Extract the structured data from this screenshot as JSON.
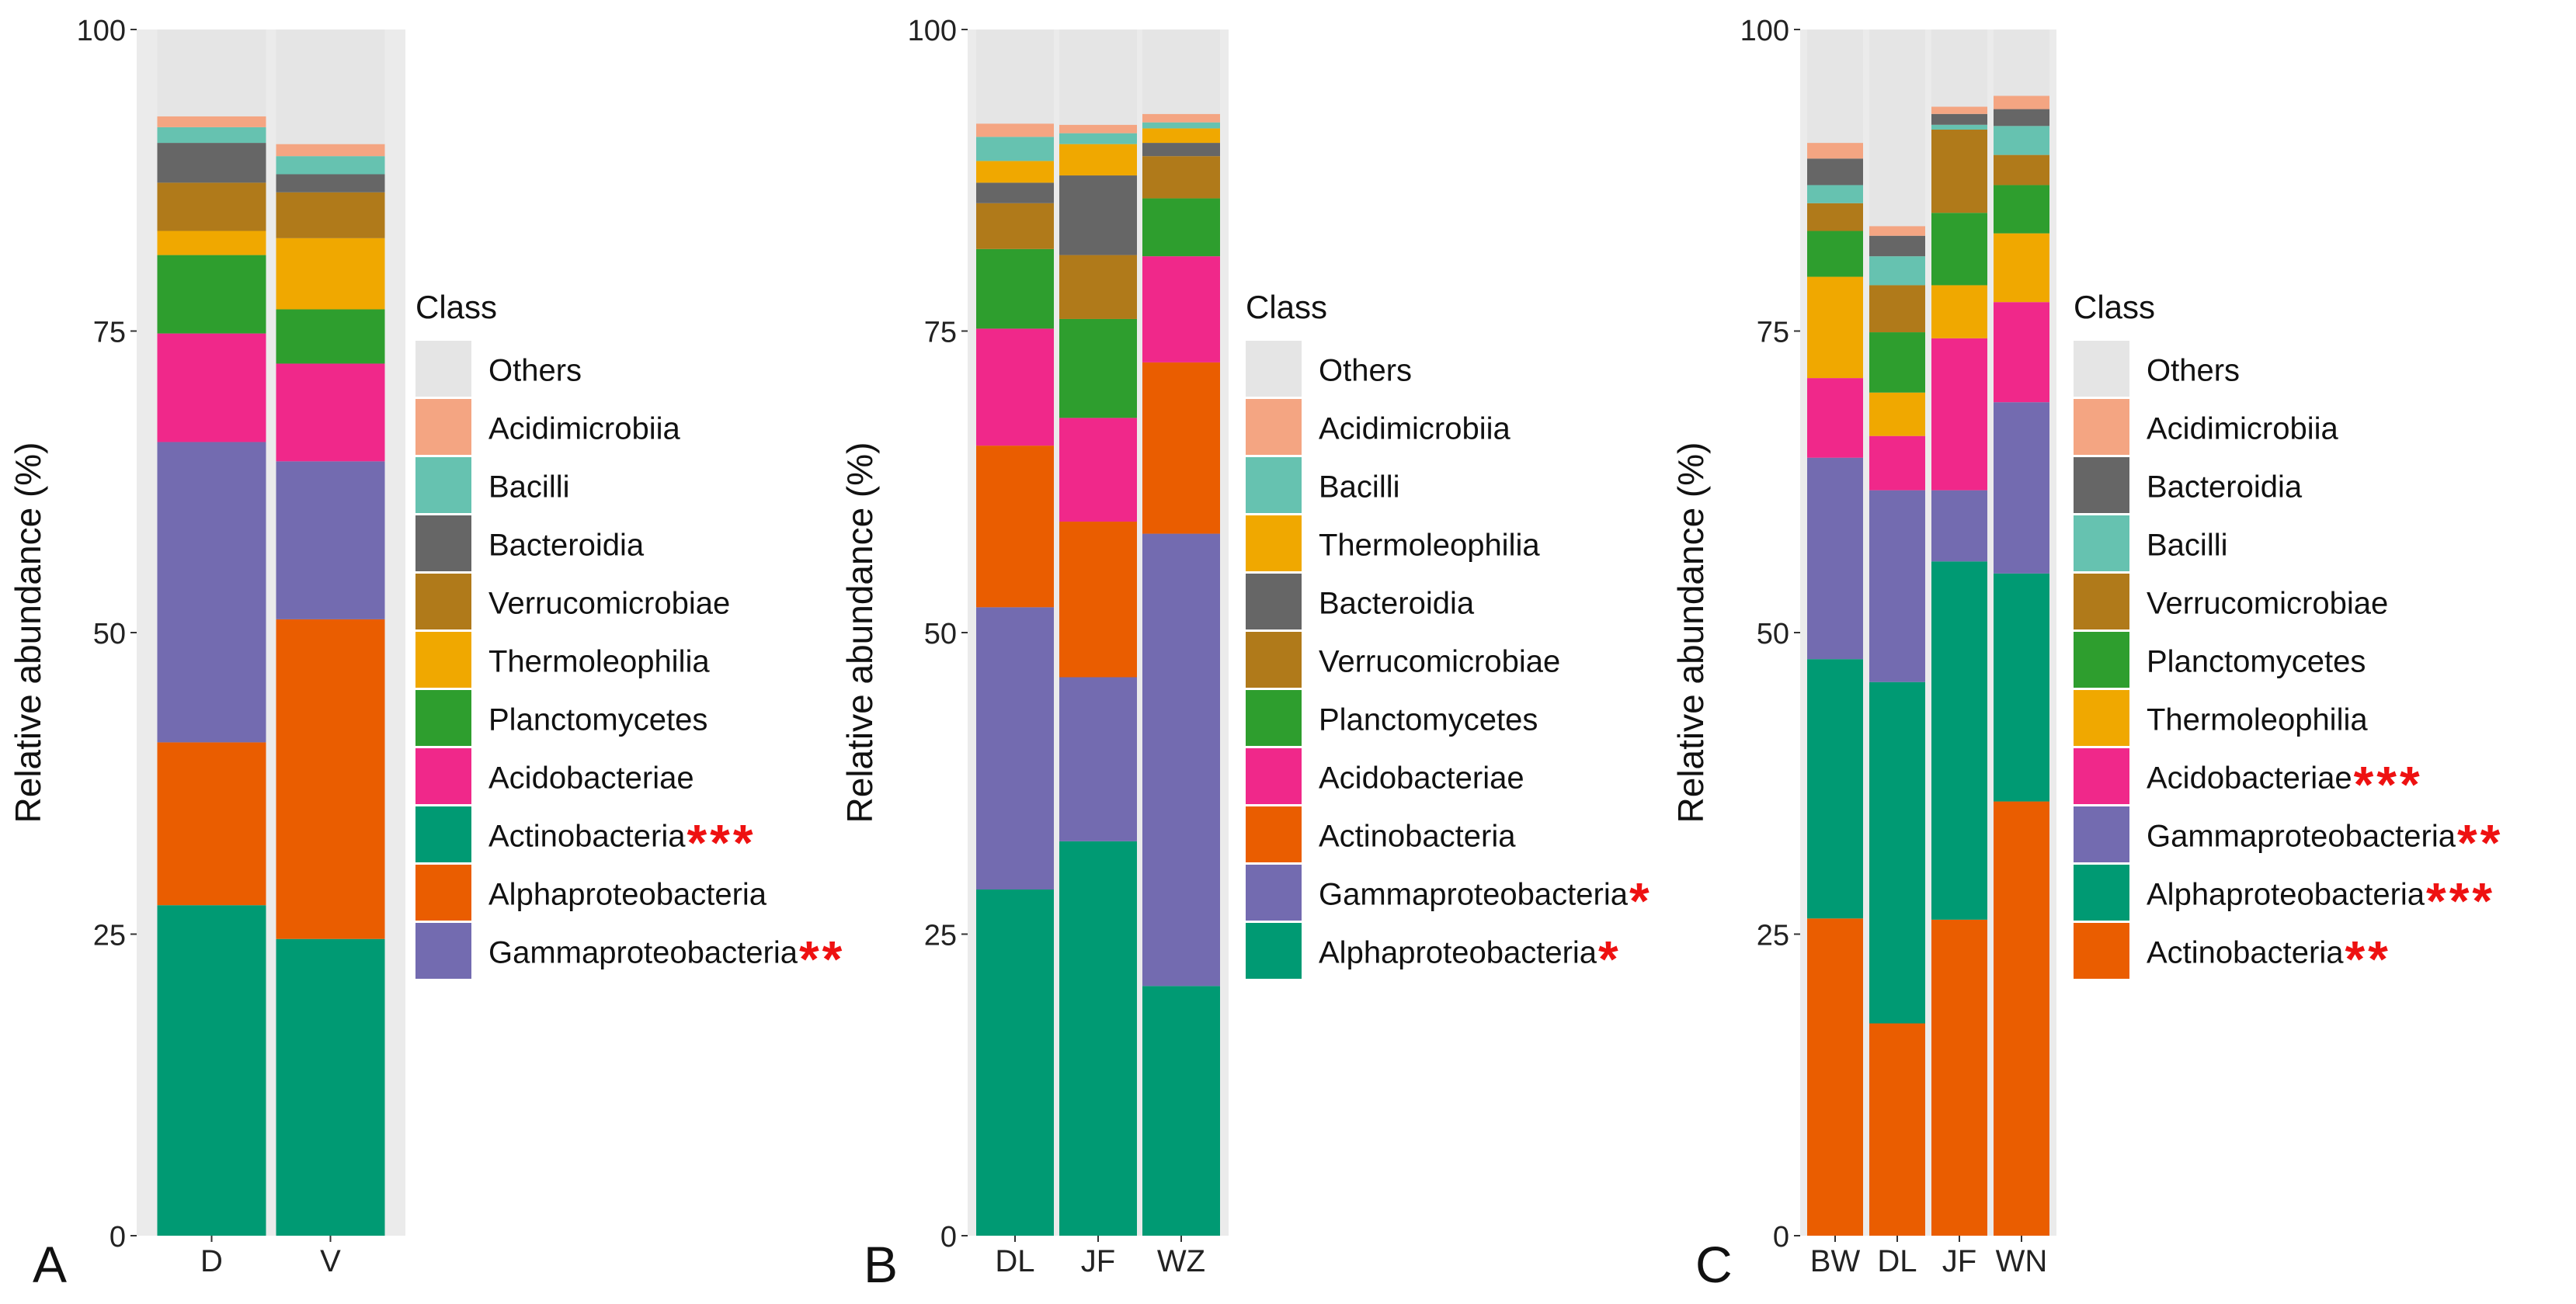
{
  "chart_data": [
    {
      "type": "bar",
      "stacked": true,
      "panel_label": "A",
      "title": "",
      "xlabel": "",
      "ylabel": "Relative abundance (%)",
      "ylim": [
        0,
        100
      ],
      "yticks": [
        "0",
        "25",
        "50",
        "75",
        "100"
      ],
      "categories": [
        "D",
        "V"
      ],
      "legend_title": "Class",
      "legend": [
        {
          "name": "Others",
          "color": "#e5e5e5",
          "stars": ""
        },
        {
          "name": "Acidimicrobiia",
          "color": "#f4a582",
          "stars": ""
        },
        {
          "name": "Bacilli",
          "color": "#66c2b0",
          "stars": ""
        },
        {
          "name": "Bacteroidia",
          "color": "#666666",
          "stars": ""
        },
        {
          "name": "Verrucomicrobiae",
          "color": "#b07a1a",
          "stars": ""
        },
        {
          "name": "Thermoleophilia",
          "color": "#f0a800",
          "stars": ""
        },
        {
          "name": "Planctomycetes",
          "color": "#2e9e2e",
          "stars": ""
        },
        {
          "name": "Acidobacteriae",
          "color": "#f0288a",
          "stars": ""
        },
        {
          "name": "Actinobacteria",
          "color": "#009a73",
          "stars": "***"
        },
        {
          "name": "Alphaproteobacteria",
          "color": "#ea5d00",
          "stars": ""
        },
        {
          "name": "Gammaproteobacteria",
          "color": "#736bb0",
          "stars": "**"
        }
      ],
      "series": [
        {
          "name": "Actinobacteria",
          "color": "#009a73",
          "values": [
            27.4,
            24.6
          ]
        },
        {
          "name": "Alphaproteobacteria",
          "color": "#ea5d00",
          "values": [
            13.5,
            26.5
          ]
        },
        {
          "name": "Gammaproteobacteria",
          "color": "#736bb0",
          "values": [
            24.9,
            13.1
          ]
        },
        {
          "name": "Acidobacteriae",
          "color": "#f0288a",
          "values": [
            9.0,
            8.1
          ]
        },
        {
          "name": "Planctomycetes",
          "color": "#2e9e2e",
          "values": [
            6.5,
            4.5
          ]
        },
        {
          "name": "Thermoleophilia",
          "color": "#f0a800",
          "values": [
            2.0,
            5.9
          ]
        },
        {
          "name": "Verrucomicrobiae",
          "color": "#b07a1a",
          "values": [
            4.0,
            3.8
          ]
        },
        {
          "name": "Bacteroidia",
          "color": "#666666",
          "values": [
            3.3,
            1.5
          ]
        },
        {
          "name": "Bacilli",
          "color": "#66c2b0",
          "values": [
            1.3,
            1.5
          ]
        },
        {
          "name": "Acidimicrobiia",
          "color": "#f4a582",
          "values": [
            0.9,
            1.0
          ]
        },
        {
          "name": "Others",
          "color": "#e5e5e5",
          "values": [
            7.2,
            9.5
          ]
        }
      ]
    },
    {
      "type": "bar",
      "stacked": true,
      "panel_label": "B",
      "title": "",
      "xlabel": "",
      "ylabel": "Relative abundance (%)",
      "ylim": [
        0,
        100
      ],
      "yticks": [
        "0",
        "25",
        "50",
        "75",
        "100"
      ],
      "categories": [
        "DL",
        "JF",
        "WZ"
      ],
      "legend_title": "Class",
      "legend": [
        {
          "name": "Others",
          "color": "#e5e5e5",
          "stars": ""
        },
        {
          "name": "Acidimicrobiia",
          "color": "#f4a582",
          "stars": ""
        },
        {
          "name": "Bacilli",
          "color": "#66c2b0",
          "stars": ""
        },
        {
          "name": "Thermoleophilia",
          "color": "#f0a800",
          "stars": ""
        },
        {
          "name": "Bacteroidia",
          "color": "#666666",
          "stars": ""
        },
        {
          "name": "Verrucomicrobiae",
          "color": "#b07a1a",
          "stars": ""
        },
        {
          "name": "Planctomycetes",
          "color": "#2e9e2e",
          "stars": ""
        },
        {
          "name": "Acidobacteriae",
          "color": "#f0288a",
          "stars": ""
        },
        {
          "name": "Actinobacteria",
          "color": "#ea5d00",
          "stars": ""
        },
        {
          "name": "Gammaproteobacteria",
          "color": "#736bb0",
          "stars": "*"
        },
        {
          "name": "Alphaproteobacteria",
          "color": "#009a73",
          "stars": "*"
        }
      ],
      "series": [
        {
          "name": "Alphaproteobacteria",
          "color": "#009a73",
          "values": [
            28.7,
            32.7,
            20.7
          ]
        },
        {
          "name": "Gammaproteobacteria",
          "color": "#736bb0",
          "values": [
            23.4,
            13.6,
            37.5
          ]
        },
        {
          "name": "Actinobacteria",
          "color": "#ea5d00",
          "values": [
            13.4,
            12.9,
            14.2
          ]
        },
        {
          "name": "Acidobacteriae",
          "color": "#f0288a",
          "values": [
            9.7,
            8.6,
            8.8
          ]
        },
        {
          "name": "Planctomycetes",
          "color": "#2e9e2e",
          "values": [
            6.6,
            8.2,
            4.8
          ]
        },
        {
          "name": "Verrucomicrobiae",
          "color": "#b07a1a",
          "values": [
            3.8,
            5.3,
            3.5
          ]
        },
        {
          "name": "Bacteroidia",
          "color": "#666666",
          "values": [
            1.7,
            6.6,
            1.1
          ]
        },
        {
          "name": "Thermoleophilia",
          "color": "#f0a800",
          "values": [
            1.8,
            2.6,
            1.2
          ]
        },
        {
          "name": "Bacilli",
          "color": "#66c2b0",
          "values": [
            2.0,
            0.9,
            0.5
          ]
        },
        {
          "name": "Acidimicrobiia",
          "color": "#f4a582",
          "values": [
            1.1,
            0.7,
            0.7
          ]
        },
        {
          "name": "Others",
          "color": "#e5e5e5",
          "values": [
            7.8,
            7.9,
            7.0
          ]
        }
      ]
    },
    {
      "type": "bar",
      "stacked": true,
      "panel_label": "C",
      "title": "",
      "xlabel": "",
      "ylabel": "Relative abundance (%)",
      "ylim": [
        0,
        100
      ],
      "yticks": [
        "0",
        "25",
        "50",
        "75",
        "100"
      ],
      "categories": [
        "BW",
        "DL",
        "JF",
        "WN"
      ],
      "legend_title": "Class",
      "legend": [
        {
          "name": "Others",
          "color": "#e5e5e5",
          "stars": ""
        },
        {
          "name": "Acidimicrobiia",
          "color": "#f4a582",
          "stars": ""
        },
        {
          "name": "Bacteroidia",
          "color": "#666666",
          "stars": ""
        },
        {
          "name": "Bacilli",
          "color": "#66c2b0",
          "stars": ""
        },
        {
          "name": "Verrucomicrobiae",
          "color": "#b07a1a",
          "stars": ""
        },
        {
          "name": "Planctomycetes",
          "color": "#2e9e2e",
          "stars": ""
        },
        {
          "name": "Thermoleophilia",
          "color": "#f0a800",
          "stars": ""
        },
        {
          "name": "Acidobacteriae",
          "color": "#f0288a",
          "stars": "***"
        },
        {
          "name": "Gammaproteobacteria",
          "color": "#736bb0",
          "stars": "**"
        },
        {
          "name": "Alphaproteobacteria",
          "color": "#009a73",
          "stars": "***"
        },
        {
          "name": "Actinobacteria",
          "color": "#ea5d00",
          "stars": "**"
        }
      ],
      "series": [
        {
          "name": "Actinobacteria",
          "color": "#ea5d00",
          "values": [
            26.3,
            17.6,
            26.2,
            36.0
          ]
        },
        {
          "name": "Alphaproteobacteria",
          "color": "#009a73",
          "values": [
            21.5,
            28.3,
            29.7,
            18.9
          ]
        },
        {
          "name": "Gammaproteobacteria",
          "color": "#736bb0",
          "values": [
            16.7,
            15.9,
            5.9,
            14.2
          ]
        },
        {
          "name": "Acidobacteriae",
          "color": "#f0288a",
          "values": [
            6.6,
            4.5,
            12.6,
            8.3
          ]
        },
        {
          "name": "Thermoleophilia",
          "color": "#f0a800",
          "values": [
            8.4,
            3.6,
            4.4,
            5.7
          ]
        },
        {
          "name": "Planctomycetes",
          "color": "#2e9e2e",
          "values": [
            3.8,
            5.0,
            6.0,
            4.0
          ]
        },
        {
          "name": "Verrucomicrobiae",
          "color": "#b07a1a",
          "values": [
            2.3,
            3.9,
            6.9,
            2.5
          ]
        },
        {
          "name": "Bacilli",
          "color": "#66c2b0",
          "values": [
            1.5,
            2.4,
            0.4,
            2.4
          ]
        },
        {
          "name": "Bacteroidia",
          "color": "#666666",
          "values": [
            2.2,
            1.7,
            0.9,
            1.4
          ]
        },
        {
          "name": "Acidimicrobiia",
          "color": "#f4a582",
          "values": [
            1.3,
            0.8,
            0.6,
            1.1
          ]
        },
        {
          "name": "Others",
          "color": "#e5e5e5",
          "values": [
            9.4,
            16.3,
            6.4,
            5.5
          ]
        }
      ]
    }
  ]
}
